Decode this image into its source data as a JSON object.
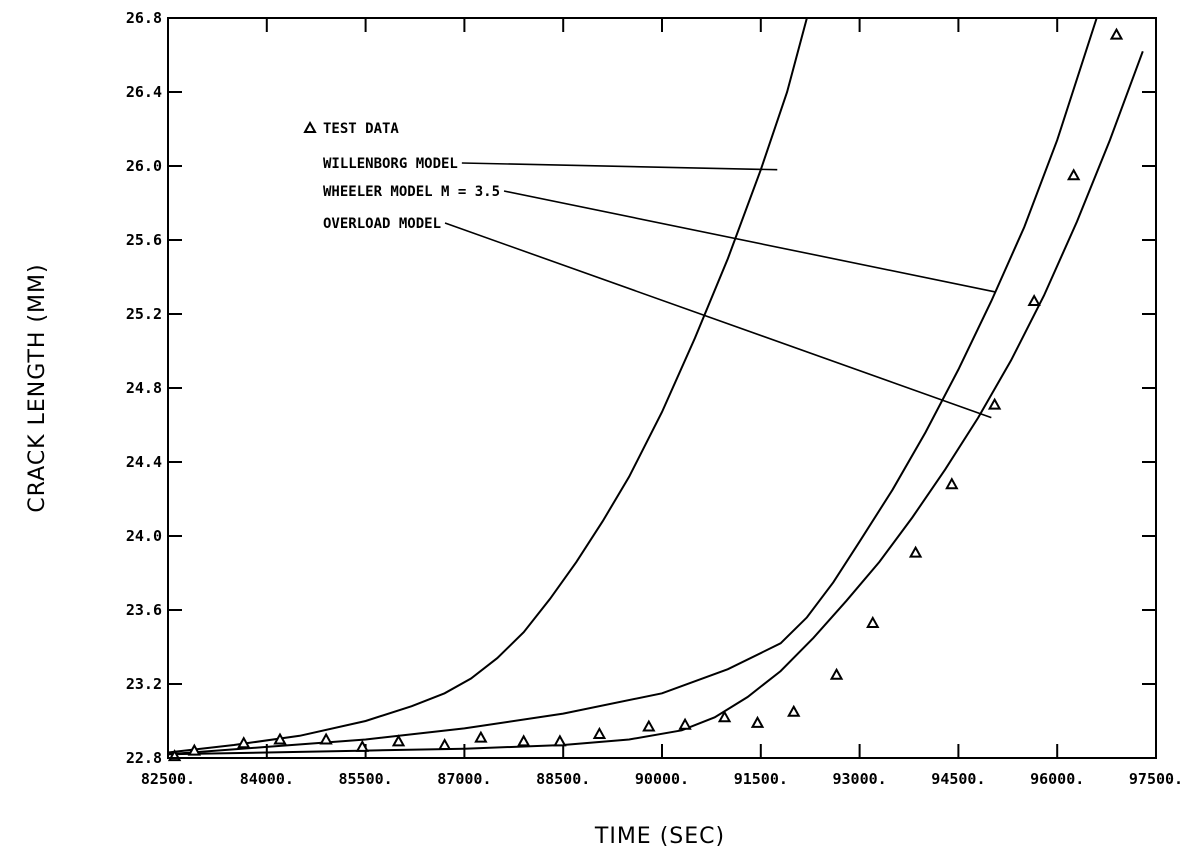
{
  "chart_data": {
    "type": "line",
    "xlabel": "TIME (SEC)",
    "ylabel": "CRACK LENGTH (MM)",
    "xlim": [
      82500,
      97500
    ],
    "ylim": [
      22.8,
      26.8
    ],
    "grid": false,
    "x_ticks": [
      "82500.",
      "84000.",
      "85500.",
      "87000.",
      "88500.",
      "90000.",
      "91500.",
      "93000.",
      "94500.",
      "96000.",
      "97500."
    ],
    "y_ticks": [
      "22.8",
      "23.2",
      "23.6",
      "24.0",
      "24.4",
      "24.8",
      "25.2",
      "25.6",
      "26.0",
      "26.4",
      "26.8"
    ],
    "legend_placement": "upper-left",
    "test_data_label": "TEST DATA",
    "test_data": [
      {
        "x": 82600,
        "y": 22.81
      },
      {
        "x": 82900,
        "y": 22.84
      },
      {
        "x": 83650,
        "y": 22.88
      },
      {
        "x": 84200,
        "y": 22.9
      },
      {
        "x": 84900,
        "y": 22.9
      },
      {
        "x": 85450,
        "y": 22.86
      },
      {
        "x": 86000,
        "y": 22.89
      },
      {
        "x": 86700,
        "y": 22.87
      },
      {
        "x": 87250,
        "y": 22.91
      },
      {
        "x": 87900,
        "y": 22.89
      },
      {
        "x": 88450,
        "y": 22.89
      },
      {
        "x": 89050,
        "y": 22.93
      },
      {
        "x": 89800,
        "y": 22.97
      },
      {
        "x": 90350,
        "y": 22.98
      },
      {
        "x": 90950,
        "y": 23.02
      },
      {
        "x": 91450,
        "y": 22.99
      },
      {
        "x": 92000,
        "y": 23.05
      },
      {
        "x": 92650,
        "y": 23.25
      },
      {
        "x": 93200,
        "y": 23.53
      },
      {
        "x": 93850,
        "y": 23.91
      },
      {
        "x": 94400,
        "y": 24.28
      },
      {
        "x": 95050,
        "y": 24.71
      },
      {
        "x": 95650,
        "y": 25.27
      },
      {
        "x": 96250,
        "y": 25.95
      },
      {
        "x": 96900,
        "y": 26.71
      }
    ],
    "series": [
      {
        "name": "WILLENBORG MODEL",
        "x": [
          82500,
          83500,
          84500,
          85500,
          86200,
          86700,
          87100,
          87500,
          87900,
          88300,
          88700,
          89100,
          89500,
          90000,
          90500,
          91000,
          91500,
          91900,
          92200
        ],
        "y": [
          22.83,
          22.87,
          22.92,
          23.0,
          23.08,
          23.15,
          23.23,
          23.34,
          23.48,
          23.66,
          23.86,
          24.08,
          24.32,
          24.67,
          25.07,
          25.5,
          25.98,
          26.4,
          26.8
        ]
      },
      {
        "name": "WHEELER MODEL M = 3.5",
        "x": [
          82500,
          84000,
          85500,
          87000,
          88500,
          90000,
          91000,
          91800,
          92200,
          92600,
          93000,
          93500,
          94000,
          94500,
          95000,
          95500,
          96000,
          96600
        ],
        "y": [
          22.82,
          22.86,
          22.9,
          22.96,
          23.04,
          23.15,
          23.28,
          23.42,
          23.56,
          23.75,
          23.97,
          24.25,
          24.56,
          24.9,
          25.27,
          25.67,
          26.14,
          26.8
        ]
      },
      {
        "name": "OVERLOAD MODEL",
        "x": [
          82500,
          84000,
          85500,
          87000,
          88500,
          89500,
          90300,
          90800,
          91300,
          91800,
          92300,
          92800,
          93300,
          93800,
          94300,
          94800,
          95300,
          95800,
          96300,
          96800,
          97300
        ],
        "y": [
          22.82,
          22.83,
          22.84,
          22.85,
          22.87,
          22.9,
          22.95,
          23.02,
          23.13,
          23.27,
          23.45,
          23.65,
          23.86,
          24.1,
          24.36,
          24.64,
          24.95,
          25.3,
          25.7,
          26.14,
          26.62
        ]
      }
    ],
    "legend_anchors": [
      {
        "label_index": 0,
        "curve_x": 91750,
        "curve_y": 25.98
      },
      {
        "label_index": 1,
        "curve_x": 95050,
        "curve_y": 25.32
      },
      {
        "label_index": 2,
        "curve_x": 95000,
        "curve_y": 24.64
      }
    ]
  }
}
